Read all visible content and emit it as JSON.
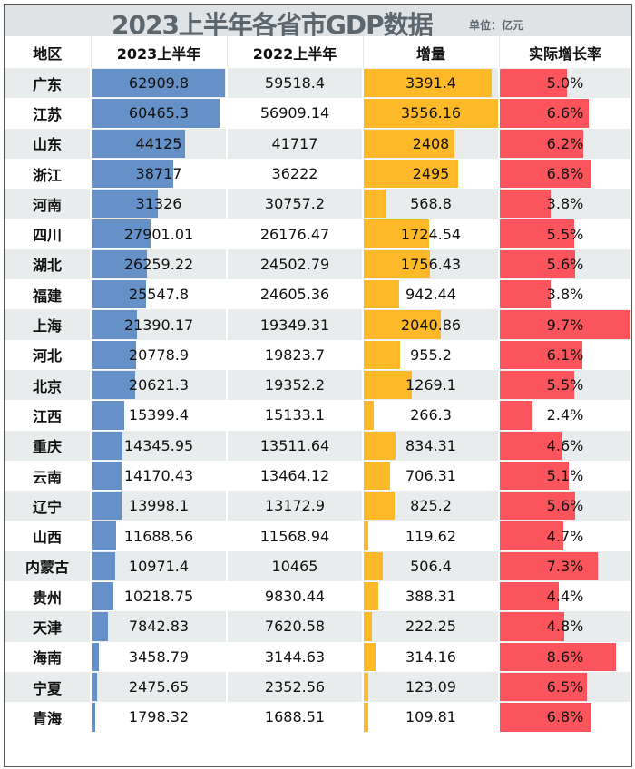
{
  "title": "2023上半年各省市GDP数据",
  "unit": "单位：亿元",
  "colors": {
    "gdp2023": "#6591c8",
    "increase": "#fdb927",
    "growth": "#fc545c",
    "stripe": "#e9eced",
    "title_bg": "#dfe3e6"
  },
  "chart_data": {
    "type": "table",
    "columns": [
      "地区",
      "2023上半年",
      "2022上半年",
      "增量",
      "实际增长率"
    ],
    "rows": [
      [
        "广东",
        "62909.8",
        "59518.4",
        "3391.4",
        "5.0%"
      ],
      [
        "江苏",
        "60465.3",
        "56909.14",
        "3556.16",
        "6.6%"
      ],
      [
        "山东",
        "44125",
        "41717",
        "2408",
        "6.2%"
      ],
      [
        "浙江",
        "38717",
        "36222",
        "2495",
        "6.8%"
      ],
      [
        "河南",
        "31326",
        "30757.2",
        "568.8",
        "3.8%"
      ],
      [
        "四川",
        "27901.01",
        "26176.47",
        "1724.54",
        "5.5%"
      ],
      [
        "湖北",
        "26259.22",
        "24502.79",
        "1756.43",
        "5.6%"
      ],
      [
        "福建",
        "25547.8",
        "24605.36",
        "942.44",
        "3.8%"
      ],
      [
        "上海",
        "21390.17",
        "19349.31",
        "2040.86",
        "9.7%"
      ],
      [
        "河北",
        "20778.9",
        "19823.7",
        "955.2",
        "6.1%"
      ],
      [
        "北京",
        "20621.3",
        "19352.2",
        "1269.1",
        "5.5%"
      ],
      [
        "江西",
        "15399.4",
        "15133.1",
        "266.3",
        "2.4%"
      ],
      [
        "重庆",
        "14345.95",
        "13511.64",
        "834.31",
        "4.6%"
      ],
      [
        "云南",
        "14170.43",
        "13464.12",
        "706.31",
        "5.1%"
      ],
      [
        "辽宁",
        "13998.1",
        "13172.9",
        "825.2",
        "5.6%"
      ],
      [
        "山西",
        "11688.56",
        "11568.94",
        "119.62",
        "4.7%"
      ],
      [
        "内蒙古",
        "10971.4",
        "10465",
        "506.4",
        "7.3%"
      ],
      [
        "贵州",
        "10218.75",
        "9830.44",
        "388.31",
        "4.4%"
      ],
      [
        "天津",
        "7842.83",
        "7620.58",
        "222.25",
        "4.8%"
      ],
      [
        "海南",
        "3458.79",
        "3144.63",
        "314.16",
        "8.6%"
      ],
      [
        "宁夏",
        "2475.65",
        "2352.56",
        "123.09",
        "6.5%"
      ],
      [
        "青海",
        "1798.32",
        "1688.51",
        "109.81",
        "6.8%"
      ]
    ]
  }
}
